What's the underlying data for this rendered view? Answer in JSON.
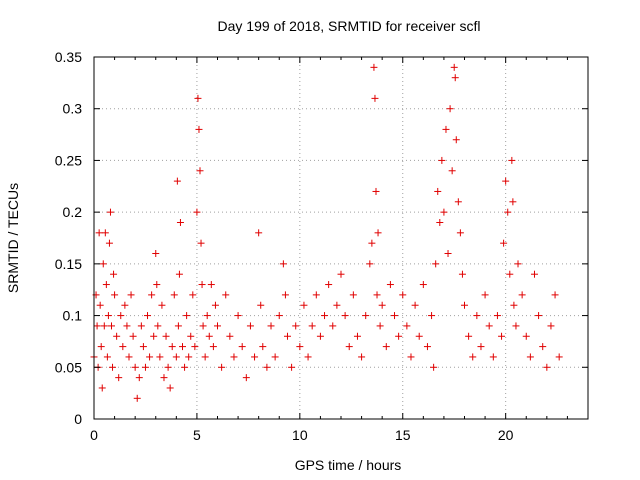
{
  "chart_data": {
    "type": "scatter",
    "title": "Day 199 of 2018, SRMTID for receiver scfl",
    "xlabel": "GPS time / hours",
    "ylabel": "SRMTID / TECUs",
    "xlim": [
      0,
      24
    ],
    "ylim": [
      0,
      0.35
    ],
    "xticks": [
      0,
      5,
      10,
      15,
      20
    ],
    "xtick_labels": [
      "0",
      "5",
      "10",
      "15",
      "20"
    ],
    "yticks": [
      0,
      0.05,
      0.1,
      0.15,
      0.2,
      0.25,
      0.3,
      0.35
    ],
    "ytick_labels": [
      "0",
      "0.05",
      "0.1",
      "0.15",
      "0.2",
      "0.25",
      "0.3",
      "0.35"
    ],
    "grid": true,
    "marker": "+",
    "color": "#e00000",
    "series": [
      {
        "name": "SRMTID",
        "points": [
          [
            0.0,
            0.06
          ],
          [
            0.1,
            0.12
          ],
          [
            0.15,
            0.09
          ],
          [
            0.2,
            0.05
          ],
          [
            0.25,
            0.18
          ],
          [
            0.3,
            0.11
          ],
          [
            0.35,
            0.07
          ],
          [
            0.4,
            0.03
          ],
          [
            0.45,
            0.15
          ],
          [
            0.5,
            0.09
          ],
          [
            0.55,
            0.18
          ],
          [
            0.6,
            0.13
          ],
          [
            0.65,
            0.06
          ],
          [
            0.7,
            0.1
          ],
          [
            0.75,
            0.17
          ],
          [
            0.8,
            0.2
          ],
          [
            0.85,
            0.09
          ],
          [
            0.9,
            0.05
          ],
          [
            0.95,
            0.14
          ],
          [
            1.0,
            0.12
          ],
          [
            1.1,
            0.08
          ],
          [
            1.2,
            0.04
          ],
          [
            1.3,
            0.1
          ],
          [
            1.4,
            0.07
          ],
          [
            1.5,
            0.11
          ],
          [
            1.6,
            0.09
          ],
          [
            1.7,
            0.06
          ],
          [
            1.8,
            0.12
          ],
          [
            1.9,
            0.08
          ],
          [
            2.0,
            0.05
          ],
          [
            2.1,
            0.02
          ],
          [
            2.2,
            0.04
          ],
          [
            2.3,
            0.09
          ],
          [
            2.4,
            0.07
          ],
          [
            2.5,
            0.05
          ],
          [
            2.6,
            0.1
          ],
          [
            2.7,
            0.06
          ],
          [
            2.8,
            0.12
          ],
          [
            2.9,
            0.08
          ],
          [
            3.0,
            0.16
          ],
          [
            3.05,
            0.13
          ],
          [
            3.1,
            0.09
          ],
          [
            3.2,
            0.06
          ],
          [
            3.3,
            0.11
          ],
          [
            3.4,
            0.04
          ],
          [
            3.5,
            0.08
          ],
          [
            3.6,
            0.05
          ],
          [
            3.7,
            0.03
          ],
          [
            3.8,
            0.07
          ],
          [
            3.9,
            0.12
          ],
          [
            4.0,
            0.06
          ],
          [
            4.05,
            0.23
          ],
          [
            4.1,
            0.09
          ],
          [
            4.15,
            0.14
          ],
          [
            4.2,
            0.19
          ],
          [
            4.3,
            0.07
          ],
          [
            4.4,
            0.05
          ],
          [
            4.5,
            0.1
          ],
          [
            4.6,
            0.06
          ],
          [
            4.7,
            0.08
          ],
          [
            4.8,
            0.12
          ],
          [
            4.9,
            0.07
          ],
          [
            5.0,
            0.2
          ],
          [
            5.05,
            0.31
          ],
          [
            5.1,
            0.28
          ],
          [
            5.15,
            0.24
          ],
          [
            5.2,
            0.17
          ],
          [
            5.25,
            0.13
          ],
          [
            5.3,
            0.09
          ],
          [
            5.4,
            0.06
          ],
          [
            5.5,
            0.1
          ],
          [
            5.6,
            0.08
          ],
          [
            5.7,
            0.13
          ],
          [
            5.8,
            0.07
          ],
          [
            5.9,
            0.11
          ],
          [
            6.0,
            0.09
          ],
          [
            6.2,
            0.05
          ],
          [
            6.4,
            0.12
          ],
          [
            6.6,
            0.08
          ],
          [
            6.8,
            0.06
          ],
          [
            7.0,
            0.1
          ],
          [
            7.2,
            0.07
          ],
          [
            7.4,
            0.04
          ],
          [
            7.6,
            0.09
          ],
          [
            7.8,
            0.06
          ],
          [
            8.0,
            0.18
          ],
          [
            8.1,
            0.11
          ],
          [
            8.2,
            0.07
          ],
          [
            8.4,
            0.05
          ],
          [
            8.6,
            0.09
          ],
          [
            8.8,
            0.06
          ],
          [
            9.0,
            0.1
          ],
          [
            9.2,
            0.15
          ],
          [
            9.3,
            0.12
          ],
          [
            9.4,
            0.08
          ],
          [
            9.6,
            0.05
          ],
          [
            9.8,
            0.09
          ],
          [
            10.0,
            0.07
          ],
          [
            10.2,
            0.11
          ],
          [
            10.4,
            0.06
          ],
          [
            10.6,
            0.09
          ],
          [
            10.8,
            0.12
          ],
          [
            11.0,
            0.08
          ],
          [
            11.2,
            0.1
          ],
          [
            11.4,
            0.13
          ],
          [
            11.6,
            0.09
          ],
          [
            11.8,
            0.11
          ],
          [
            12.0,
            0.14
          ],
          [
            12.2,
            0.1
          ],
          [
            12.4,
            0.07
          ],
          [
            12.6,
            0.12
          ],
          [
            12.8,
            0.08
          ],
          [
            13.0,
            0.06
          ],
          [
            13.2,
            0.1
          ],
          [
            13.4,
            0.15
          ],
          [
            13.5,
            0.17
          ],
          [
            13.6,
            0.34
          ],
          [
            13.65,
            0.31
          ],
          [
            13.7,
            0.22
          ],
          [
            13.75,
            0.12
          ],
          [
            13.8,
            0.18
          ],
          [
            13.9,
            0.09
          ],
          [
            14.0,
            0.11
          ],
          [
            14.2,
            0.07
          ],
          [
            14.4,
            0.13
          ],
          [
            14.6,
            0.1
          ],
          [
            14.8,
            0.08
          ],
          [
            15.0,
            0.12
          ],
          [
            15.2,
            0.09
          ],
          [
            15.4,
            0.06
          ],
          [
            15.6,
            0.11
          ],
          [
            15.8,
            0.08
          ],
          [
            16.0,
            0.13
          ],
          [
            16.2,
            0.07
          ],
          [
            16.4,
            0.1
          ],
          [
            16.5,
            0.05
          ],
          [
            16.6,
            0.15
          ],
          [
            16.7,
            0.22
          ],
          [
            16.8,
            0.19
          ],
          [
            16.9,
            0.25
          ],
          [
            17.0,
            0.2
          ],
          [
            17.1,
            0.28
          ],
          [
            17.2,
            0.16
          ],
          [
            17.3,
            0.3
          ],
          [
            17.4,
            0.24
          ],
          [
            17.5,
            0.34
          ],
          [
            17.55,
            0.33
          ],
          [
            17.6,
            0.27
          ],
          [
            17.7,
            0.21
          ],
          [
            17.8,
            0.18
          ],
          [
            17.9,
            0.14
          ],
          [
            18.0,
            0.11
          ],
          [
            18.2,
            0.08
          ],
          [
            18.4,
            0.06
          ],
          [
            18.6,
            0.1
          ],
          [
            18.8,
            0.07
          ],
          [
            19.0,
            0.12
          ],
          [
            19.2,
            0.09
          ],
          [
            19.4,
            0.06
          ],
          [
            19.6,
            0.1
          ],
          [
            19.8,
            0.08
          ],
          [
            19.9,
            0.17
          ],
          [
            20.0,
            0.23
          ],
          [
            20.1,
            0.2
          ],
          [
            20.2,
            0.14
          ],
          [
            20.3,
            0.25
          ],
          [
            20.35,
            0.21
          ],
          [
            20.4,
            0.11
          ],
          [
            20.5,
            0.09
          ],
          [
            20.6,
            0.15
          ],
          [
            20.8,
            0.12
          ],
          [
            21.0,
            0.08
          ],
          [
            21.2,
            0.06
          ],
          [
            21.4,
            0.14
          ],
          [
            21.6,
            0.1
          ],
          [
            21.8,
            0.07
          ],
          [
            22.0,
            0.05
          ],
          [
            22.2,
            0.09
          ],
          [
            22.4,
            0.12
          ],
          [
            22.6,
            0.06
          ]
        ]
      }
    ]
  }
}
